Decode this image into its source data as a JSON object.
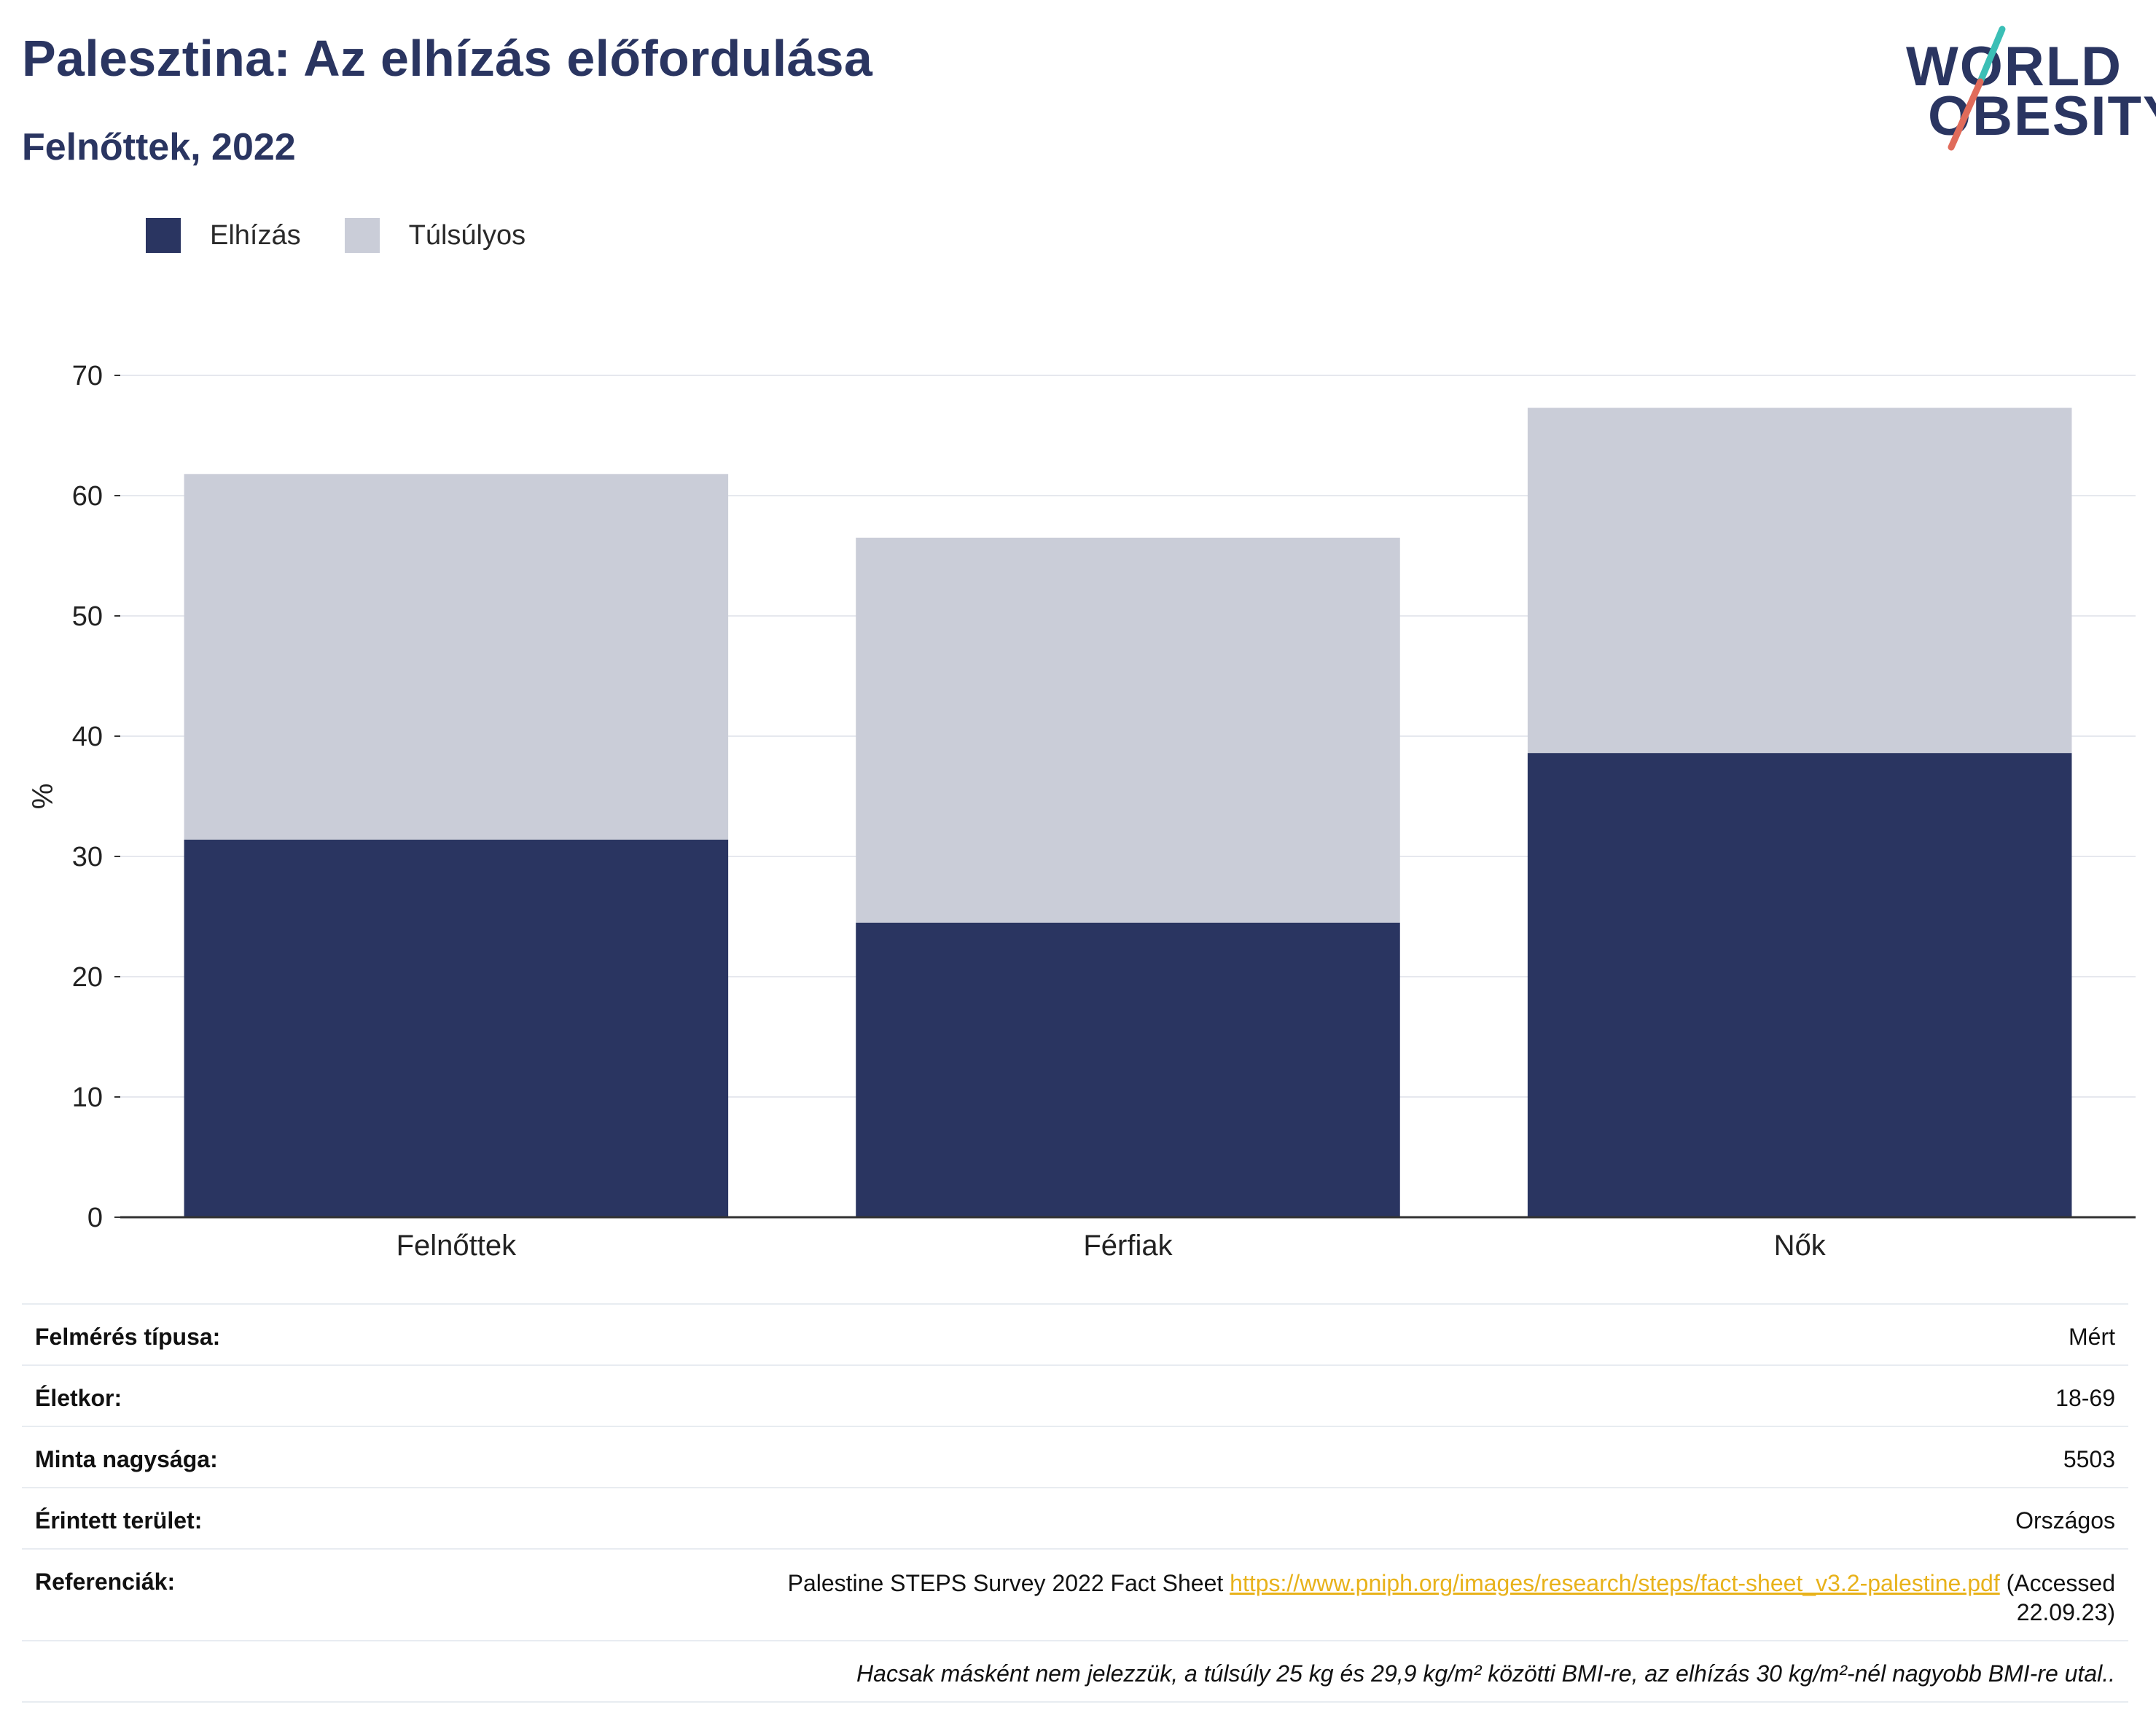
{
  "header": {
    "title": "Palesztina: Az elhízás előfordulása",
    "subtitle": "Felnőttek, 2022"
  },
  "logo": {
    "line1": "WORLD",
    "line2": "OBESITY"
  },
  "colors": {
    "obesity": "#2a3561",
    "overweight": "#cacdd8",
    "accent_teal": "#3bbfb6",
    "accent_red": "#e06b5a",
    "link": "#e8b21b"
  },
  "chart_data": {
    "type": "bar",
    "stacked": true,
    "title": "Palesztina: Az elhízás előfordulása",
    "subtitle": "Felnőttek, 2022",
    "xlabel": "",
    "ylabel": "%",
    "ylim": [
      0,
      70
    ],
    "yticks": [
      0,
      10,
      20,
      30,
      40,
      50,
      60,
      70
    ],
    "grid": true,
    "legend_position": "top-left",
    "categories": [
      "Felnőttek",
      "Férfiak",
      "Nők"
    ],
    "series": [
      {
        "name": "Elhízás",
        "values": [
          31.4,
          24.5,
          38.6
        ],
        "color": "#2a3561"
      },
      {
        "name": "Túlsúlyos",
        "values": [
          30.4,
          32.0,
          28.7
        ],
        "color": "#cacdd8"
      }
    ]
  },
  "meta": {
    "survey_type": {
      "label": "Felmérés típusa:",
      "value": "Mért"
    },
    "age": {
      "label": "Életkor:",
      "value": "18-69"
    },
    "sample": {
      "label": "Minta nagysága:",
      "value": "5503"
    },
    "area": {
      "label": "Érintett terület:",
      "value": "Országos"
    },
    "references": {
      "label": "Referenciák:",
      "text": "Palestine STEPS Survey 2022 Fact Sheet",
      "link": "https://www.pniph.org/images/research/steps/fact-sheet_v3.2-palestine.pdf",
      "accessed_1": "(Accessed",
      "accessed_2": "22.09.23)"
    },
    "note": "Hacsak másként nem jelezzük, a túlsúly 25 kg és 29,9 kg/m² közötti BMI-re, az elhízás 30 kg/m²-nél nagyobb BMI-re utal.."
  }
}
